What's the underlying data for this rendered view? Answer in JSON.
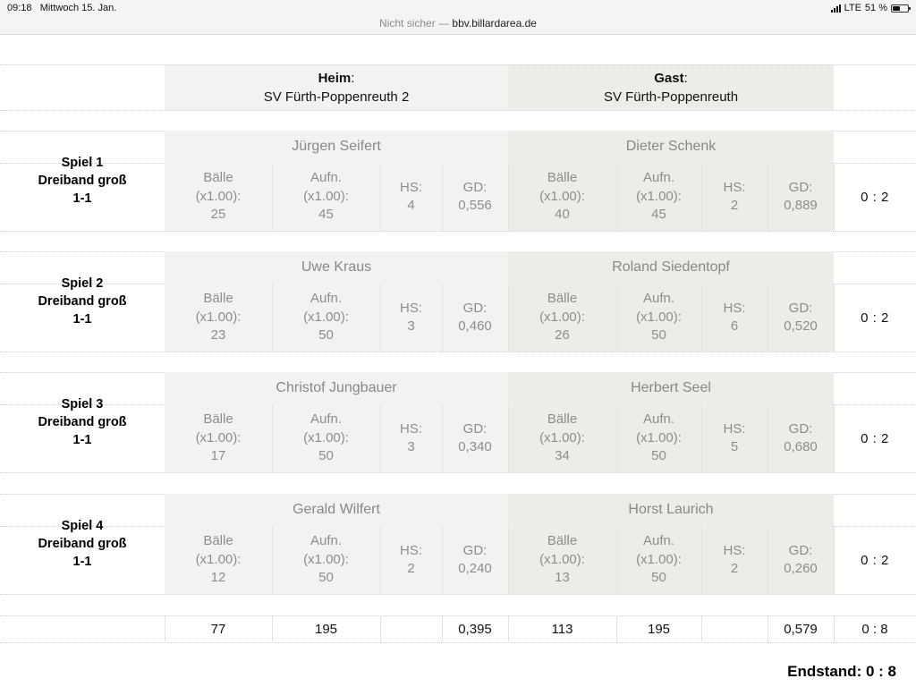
{
  "status_bar": {
    "time": "09:18",
    "date": "Mittwoch 15. Jan.",
    "network": "LTE",
    "battery": "51 %"
  },
  "url_bar": {
    "security": "Nicht sicher —",
    "host": "bbv.billardarea.de"
  },
  "header": {
    "home_label": "Heim",
    "home_team": "SV Fürth-Poppenreuth 2",
    "guest_label": "Gast",
    "guest_team": "SV Fürth-Poppenreuth",
    "colon": ":"
  },
  "stat_headers": {
    "balls": "Bälle",
    "balls_factor": "(x1.00):",
    "innings": "Aufn.",
    "innings_factor": "(x1.00):",
    "hs": "HS:",
    "gd": "GD:"
  },
  "games": [
    {
      "title": "Spiel 1",
      "discipline": "Dreiband groß",
      "result_line": "1-1",
      "home": {
        "player": "Jürgen Seifert",
        "balls": "25",
        "innings": "45",
        "hs": "4",
        "gd": "0,556"
      },
      "guest": {
        "player": "Dieter Schenk",
        "balls": "40",
        "innings": "45",
        "hs": "2",
        "gd": "0,889"
      },
      "score": "0 : 2"
    },
    {
      "title": "Spiel 2",
      "discipline": "Dreiband groß",
      "result_line": "1-1",
      "home": {
        "player": "Uwe Kraus",
        "balls": "23",
        "innings": "50",
        "hs": "3",
        "gd": "0,460"
      },
      "guest": {
        "player": "Roland Siedentopf",
        "balls": "26",
        "innings": "50",
        "hs": "6",
        "gd": "0,520"
      },
      "score": "0 : 2"
    },
    {
      "title": "Spiel 3",
      "discipline": "Dreiband groß",
      "result_line": "1-1",
      "home": {
        "player": "Christof Jungbauer",
        "balls": "17",
        "innings": "50",
        "hs": "3",
        "gd": "0,340"
      },
      "guest": {
        "player": "Herbert Seel",
        "balls": "34",
        "innings": "50",
        "hs": "5",
        "gd": "0,680"
      },
      "score": "0 : 2"
    },
    {
      "title": "Spiel 4",
      "discipline": "Dreiband groß",
      "result_line": "1-1",
      "home": {
        "player": "Gerald Wilfert",
        "balls": "12",
        "innings": "50",
        "hs": "2",
        "gd": "0,240"
      },
      "guest": {
        "player": "Horst Laurich",
        "balls": "13",
        "innings": "50",
        "hs": "2",
        "gd": "0,260"
      },
      "score": "0 : 2"
    }
  ],
  "totals": {
    "home_balls": "77",
    "home_innings": "195",
    "home_gd": "0,395",
    "guest_balls": "113",
    "guest_innings": "195",
    "guest_gd": "0,579",
    "score": "0 : 8"
  },
  "final": {
    "label": "Endstand:",
    "score": "0 : 8"
  }
}
